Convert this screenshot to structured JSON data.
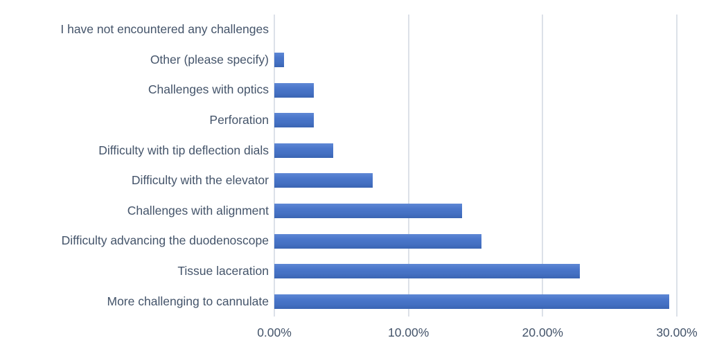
{
  "chart_data": {
    "type": "bar",
    "orientation": "horizontal",
    "title": "",
    "xlabel": "",
    "ylabel": "",
    "categories": [
      "I have not encountered any challenges",
      "Other (please specify)",
      "Challenges with optics",
      "Perforation",
      "Difficulty with tip deflection dials",
      "Difficulty with the elevator",
      "Challenges with alignment",
      "Difficulty advancing the duodenoscope",
      "Tissue laceration",
      "More challenging to cannulate"
    ],
    "values": [
      0.0,
      0.74,
      2.94,
      2.94,
      4.41,
      7.35,
      13.97,
      15.44,
      22.79,
      29.41
    ],
    "x_ticks": [
      0,
      10,
      20,
      30
    ],
    "x_tick_labels": [
      "0.00%",
      "10.00%",
      "20.00%",
      "30.00%"
    ],
    "xlim": [
      0,
      31.6
    ],
    "grid": true,
    "legend": false,
    "colors": {
      "bar": "#4472C4",
      "bar_gradient_top": "#5E87D5",
      "bar_gradient_bottom": "#3A64B2",
      "gridline": "#DCE1E8",
      "text": "#44546A",
      "background": "#FFFFFF"
    }
  }
}
